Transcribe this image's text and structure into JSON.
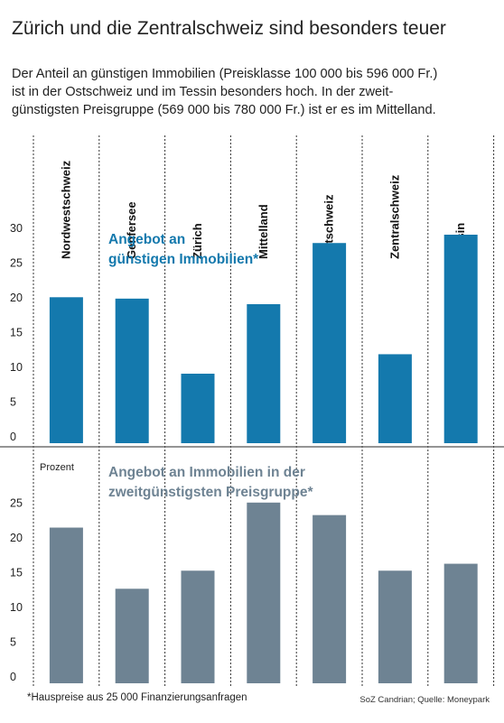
{
  "headline": "Zürich und die Zentralschweiz sind besonders teuer",
  "intro": [
    "Der Anteil an günstigen Immobilien (Preisklasse 100 000 bis 596 000 Fr.)",
    "ist in der Ostschweiz und im Tessin besonders hoch. In der zweit-",
    "günstigsten Preisgruppe (569 000 bis 780 000 Fr.) ist er es im Mittelland."
  ],
  "footnote": "*Hauspreise aus 25 000 Finanzierungsanfragen",
  "source": "SoZ Candrian; Quelle: Moneypark",
  "colors": {
    "top_bars": "#1479ad",
    "bottom_bars": "#6e8393",
    "top_title": "#1479ad",
    "bottom_title": "#6e8393",
    "divider": "#333333",
    "panel_rule": "#555555"
  },
  "chart_data": [
    {
      "type": "bar",
      "title": "Angebot an\ngünstigen Immobilien*",
      "categories": [
        "Nordwestschweiz",
        "Genfersee",
        "Zürich",
        "Mittelland",
        "Ostschweiz",
        "Zentralschweiz",
        "Tessin"
      ],
      "values": [
        21,
        20.8,
        10,
        20,
        28.8,
        12.8,
        30
      ],
      "ylim": [
        0,
        30
      ],
      "yticks": [
        0,
        5,
        10,
        15,
        20,
        25,
        30
      ],
      "ylabel": "",
      "grid": false
    },
    {
      "type": "bar",
      "title": "Angebot an Immobilien in der\nzweitgünstigsten Preisgruppe*",
      "categories": [
        "Nordwestschweiz",
        "Genfersee",
        "Zürich",
        "Mittelland",
        "Ostschweiz",
        "Zentralschweiz",
        "Tessin"
      ],
      "values": [
        22.4,
        13.6,
        16.2,
        26,
        24.2,
        16.2,
        17.2
      ],
      "ylim": [
        0,
        30
      ],
      "yticks": [
        0,
        5,
        10,
        15,
        20,
        25
      ],
      "ylabel": "Prozent",
      "grid": false
    }
  ]
}
